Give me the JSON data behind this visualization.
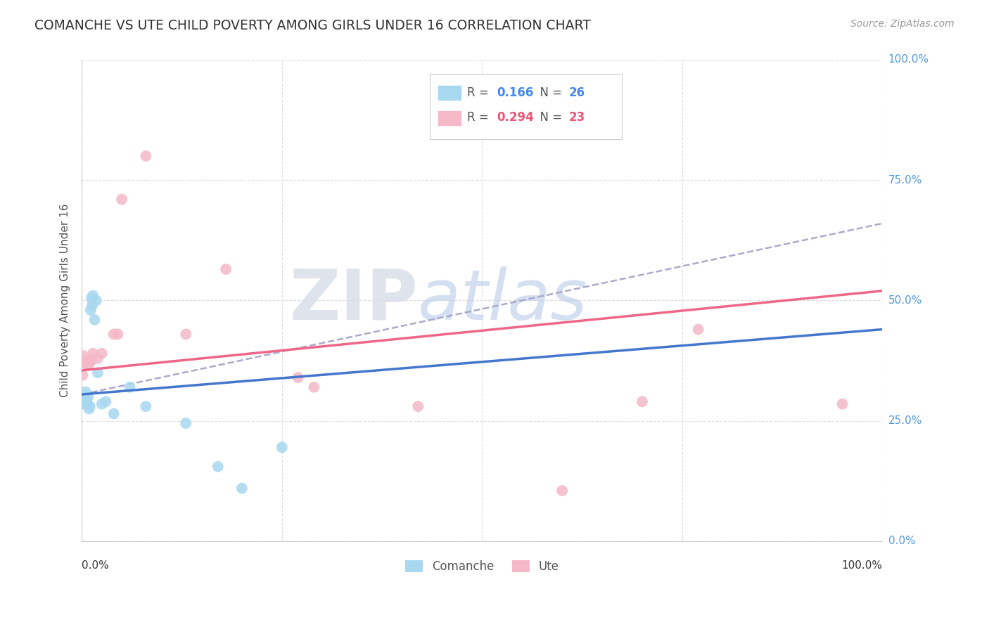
{
  "title": "COMANCHE VS UTE CHILD POVERTY AMONG GIRLS UNDER 16 CORRELATION CHART",
  "source": "Source: ZipAtlas.com",
  "ylabel": "Child Poverty Among Girls Under 16",
  "watermark_zip": "ZIP",
  "watermark_atlas": "atlas",
  "legend_blue_r": "R = 0.166",
  "legend_blue_n": "N = 26",
  "legend_pink_r": "R = 0.294",
  "legend_pink_n": "N = 23",
  "comanche_x": [
    0.001,
    0.002,
    0.003,
    0.004,
    0.005,
    0.006,
    0.007,
    0.008,
    0.009,
    0.01,
    0.011,
    0.012,
    0.013,
    0.014,
    0.016,
    0.018,
    0.02,
    0.025,
    0.03,
    0.04,
    0.06,
    0.08,
    0.13,
    0.17,
    0.2,
    0.25
  ],
  "comanche_y": [
    0.285,
    0.295,
    0.3,
    0.29,
    0.31,
    0.295,
    0.285,
    0.3,
    0.275,
    0.28,
    0.48,
    0.505,
    0.49,
    0.51,
    0.46,
    0.5,
    0.35,
    0.285,
    0.29,
    0.265,
    0.32,
    0.28,
    0.245,
    0.155,
    0.11,
    0.195
  ],
  "ute_x": [
    0.001,
    0.002,
    0.004,
    0.006,
    0.008,
    0.01,
    0.012,
    0.014,
    0.02,
    0.025,
    0.04,
    0.045,
    0.05,
    0.08,
    0.18,
    0.27,
    0.42,
    0.6,
    0.7,
    0.77,
    0.95,
    0.29,
    0.13
  ],
  "ute_y": [
    0.345,
    0.385,
    0.37,
    0.375,
    0.365,
    0.375,
    0.375,
    0.39,
    0.38,
    0.39,
    0.43,
    0.43,
    0.71,
    0.8,
    0.565,
    0.34,
    0.28,
    0.105,
    0.29,
    0.44,
    0.285,
    0.32,
    0.43
  ],
  "comanche_color": "#a8d8f0",
  "ute_color": "#f4b8c8",
  "comanche_line_color": "#4477cc",
  "ute_line_color": "#ee6688",
  "dashed_line_color": "#aaaacc",
  "background_color": "#ffffff",
  "grid_color": "#dddddd",
  "title_color": "#333333",
  "source_color": "#999999",
  "marker_size": 130,
  "xlim": [
    0.0,
    1.0
  ],
  "ylim": [
    0.0,
    1.0
  ]
}
